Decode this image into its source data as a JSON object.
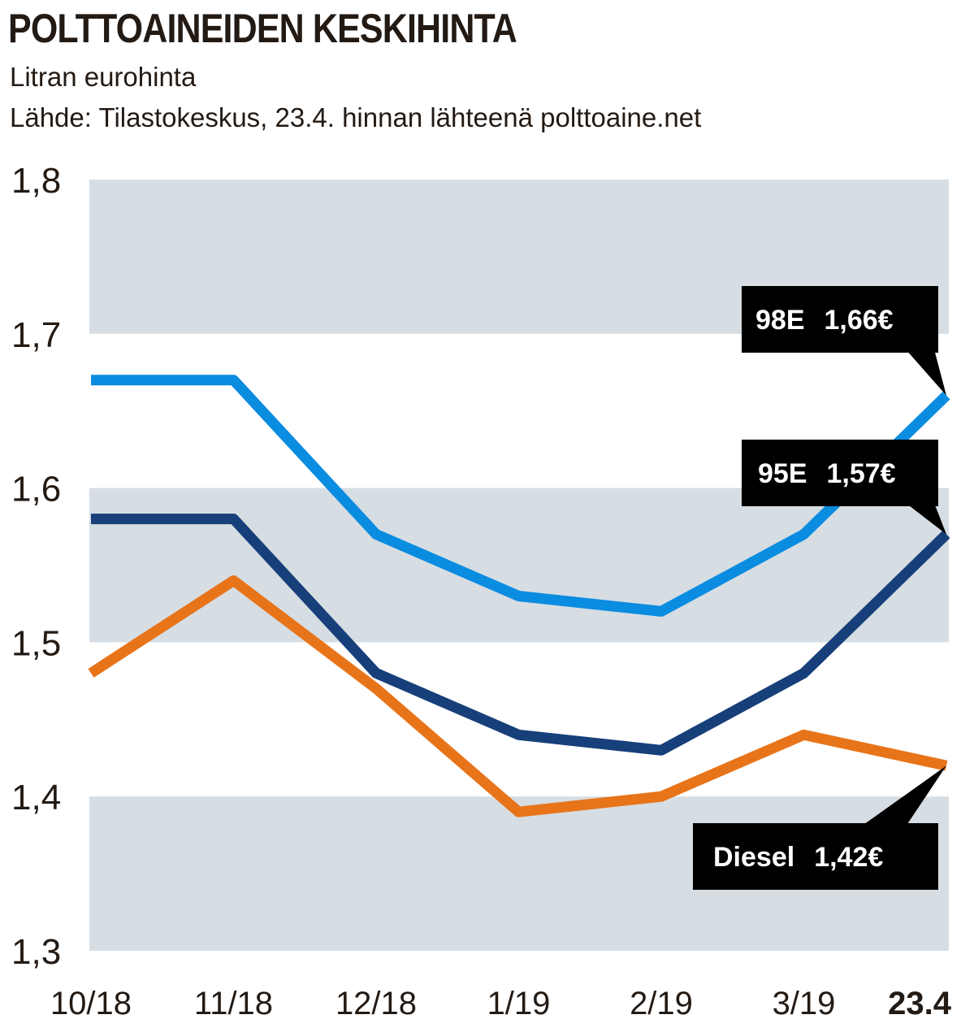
{
  "header": {
    "title": "POLTTOAINEIDEN KESKIHINTA",
    "subtitle": "Litran eurohinta",
    "source": "Lähde: Tilastokeskus, 23.4. hinnan lähteenä polttoaine.net"
  },
  "chart_data": {
    "type": "line",
    "categories": [
      "10/18",
      "11/18",
      "12/18",
      "1/19",
      "2/19",
      "3/19",
      "23.4"
    ],
    "emphasized_category": "23.4",
    "yticks": [
      "1,8",
      "1,7",
      "1,6",
      "1,5",
      "1,4",
      "1,3"
    ],
    "ylim": [
      1.3,
      1.8
    ],
    "grid": "alternating horizontal bands",
    "band_color": "#d6dde3",
    "series": [
      {
        "name": "98E",
        "color": "#0a8ce0",
        "values": [
          1.67,
          1.67,
          1.57,
          1.53,
          1.52,
          1.57,
          1.66
        ],
        "end_label_value": "1,66€"
      },
      {
        "name": "95E",
        "color": "#173f7a",
        "values": [
          1.58,
          1.58,
          1.48,
          1.44,
          1.43,
          1.48,
          1.57
        ],
        "end_label_value": "1,57€"
      },
      {
        "name": "Diesel",
        "color": "#e8741a",
        "values": [
          1.48,
          1.54,
          1.47,
          1.39,
          1.4,
          1.44,
          1.42
        ],
        "end_label_value": "1,42€"
      }
    ]
  }
}
